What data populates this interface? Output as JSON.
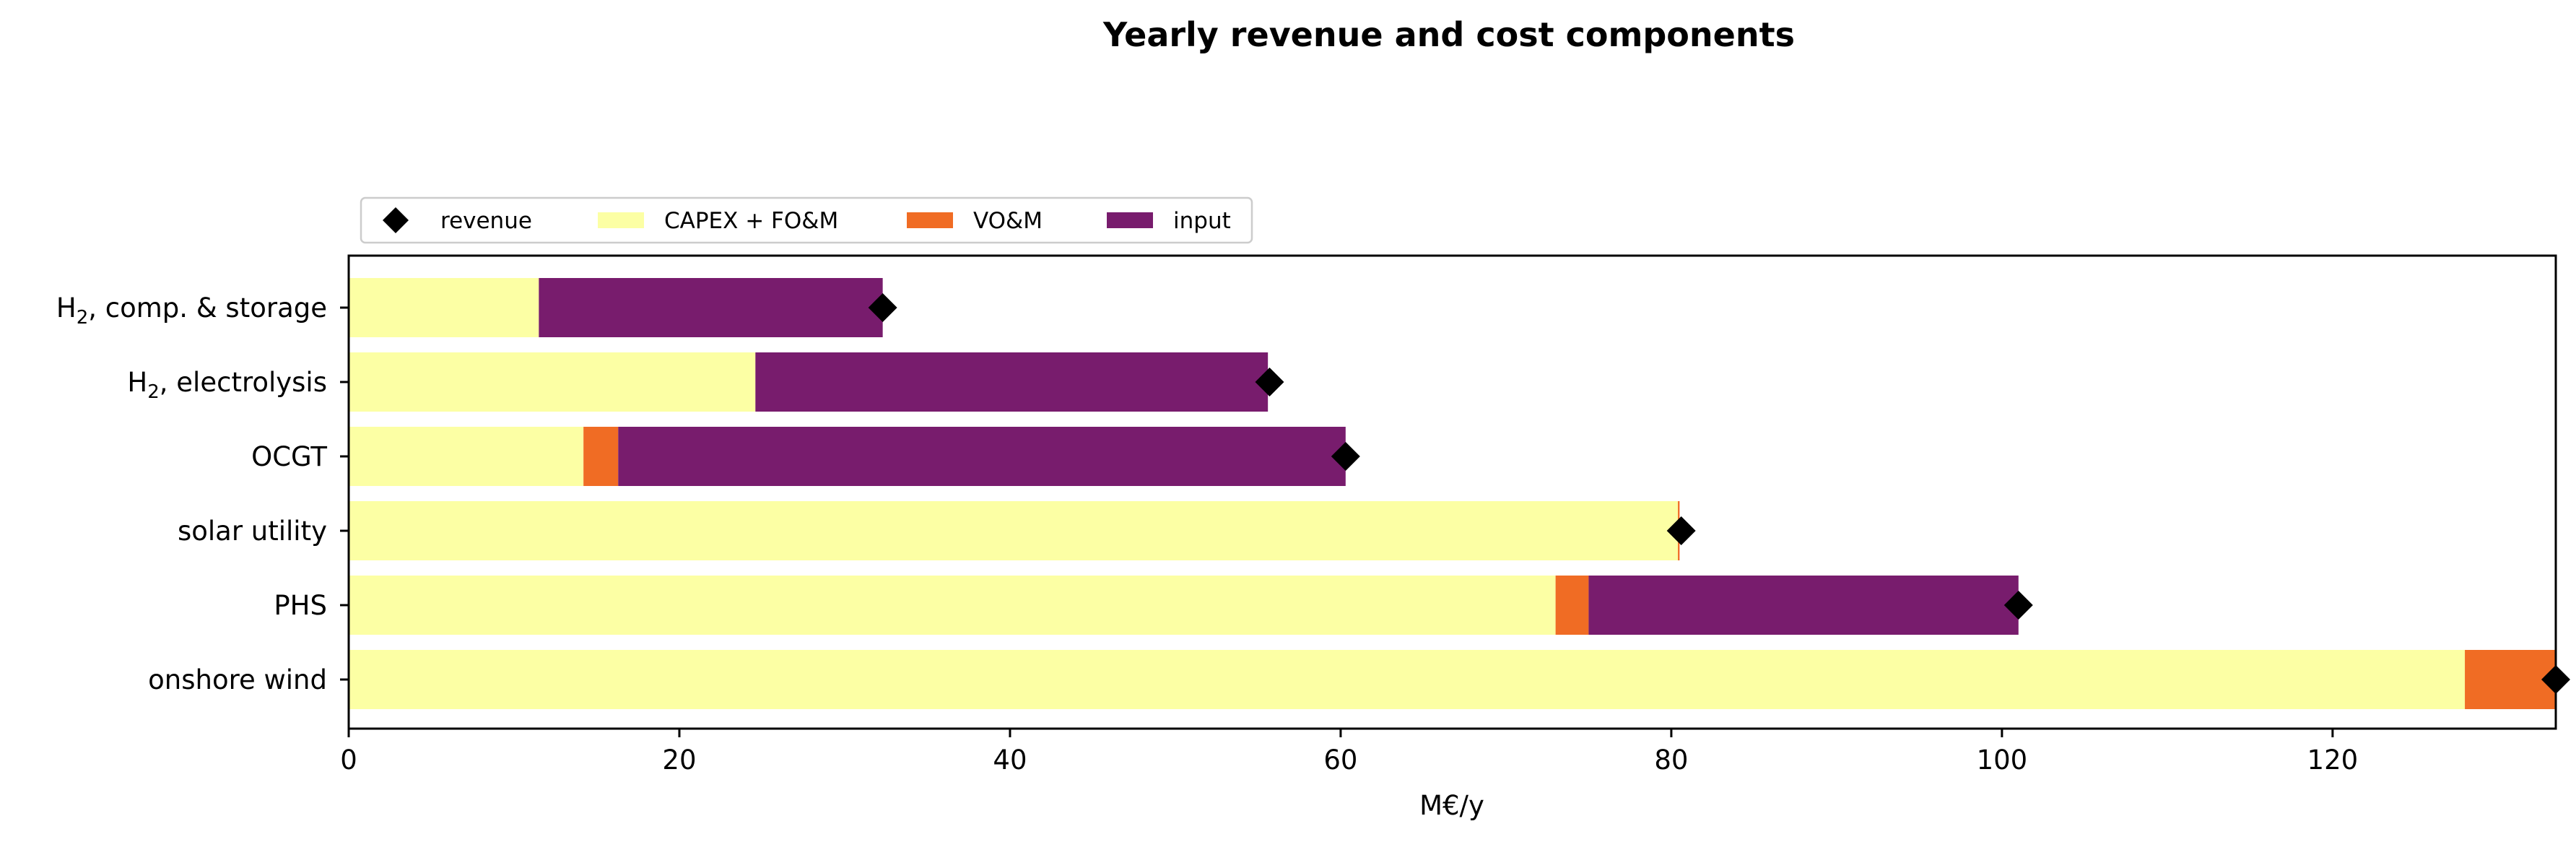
{
  "chart_data": {
    "type": "bar",
    "orientation": "horizontal",
    "stacked": true,
    "title": "Yearly revenue and cost components",
    "xlabel": "M€/y",
    "ylabel": "",
    "xlim": [
      0,
      133.5
    ],
    "xticks": [
      0,
      20,
      40,
      60,
      80,
      100,
      120
    ],
    "grid": false,
    "legend_position": "top-left, above plot",
    "categories": [
      {
        "base": "H",
        "sub": "2",
        "rest": ", comp. & storage"
      },
      {
        "base": "H",
        "sub": "2",
        "rest": ", electrolysis"
      },
      {
        "base": "OCGT",
        "sub": "",
        "rest": ""
      },
      {
        "base": "solar utility",
        "sub": "",
        "rest": ""
      },
      {
        "base": "PHS",
        "sub": "",
        "rest": ""
      },
      {
        "base": "onshore wind",
        "sub": "",
        "rest": ""
      }
    ],
    "series": [
      {
        "name": "CAPEX + FO&M",
        "color": "#fcffa4",
        "values": [
          11.5,
          24.6,
          14.2,
          80.4,
          73.0,
          128.0
        ]
      },
      {
        "name": "VO&M",
        "color": "#f06c24",
        "values": [
          0,
          0,
          2.1,
          0.1,
          2.0,
          5.5
        ]
      },
      {
        "name": "input",
        "color": "#781c6d",
        "values": [
          20.8,
          31.0,
          44.0,
          0,
          26.0,
          0
        ]
      }
    ],
    "revenue": {
      "name": "revenue",
      "color": "#000000",
      "marker": "diamond",
      "values": [
        32.3,
        55.7,
        60.3,
        80.6,
        101.0,
        133.5
      ]
    },
    "legend_order": [
      "revenue",
      "CAPEX + FO&M",
      "VO&M",
      "input"
    ]
  }
}
